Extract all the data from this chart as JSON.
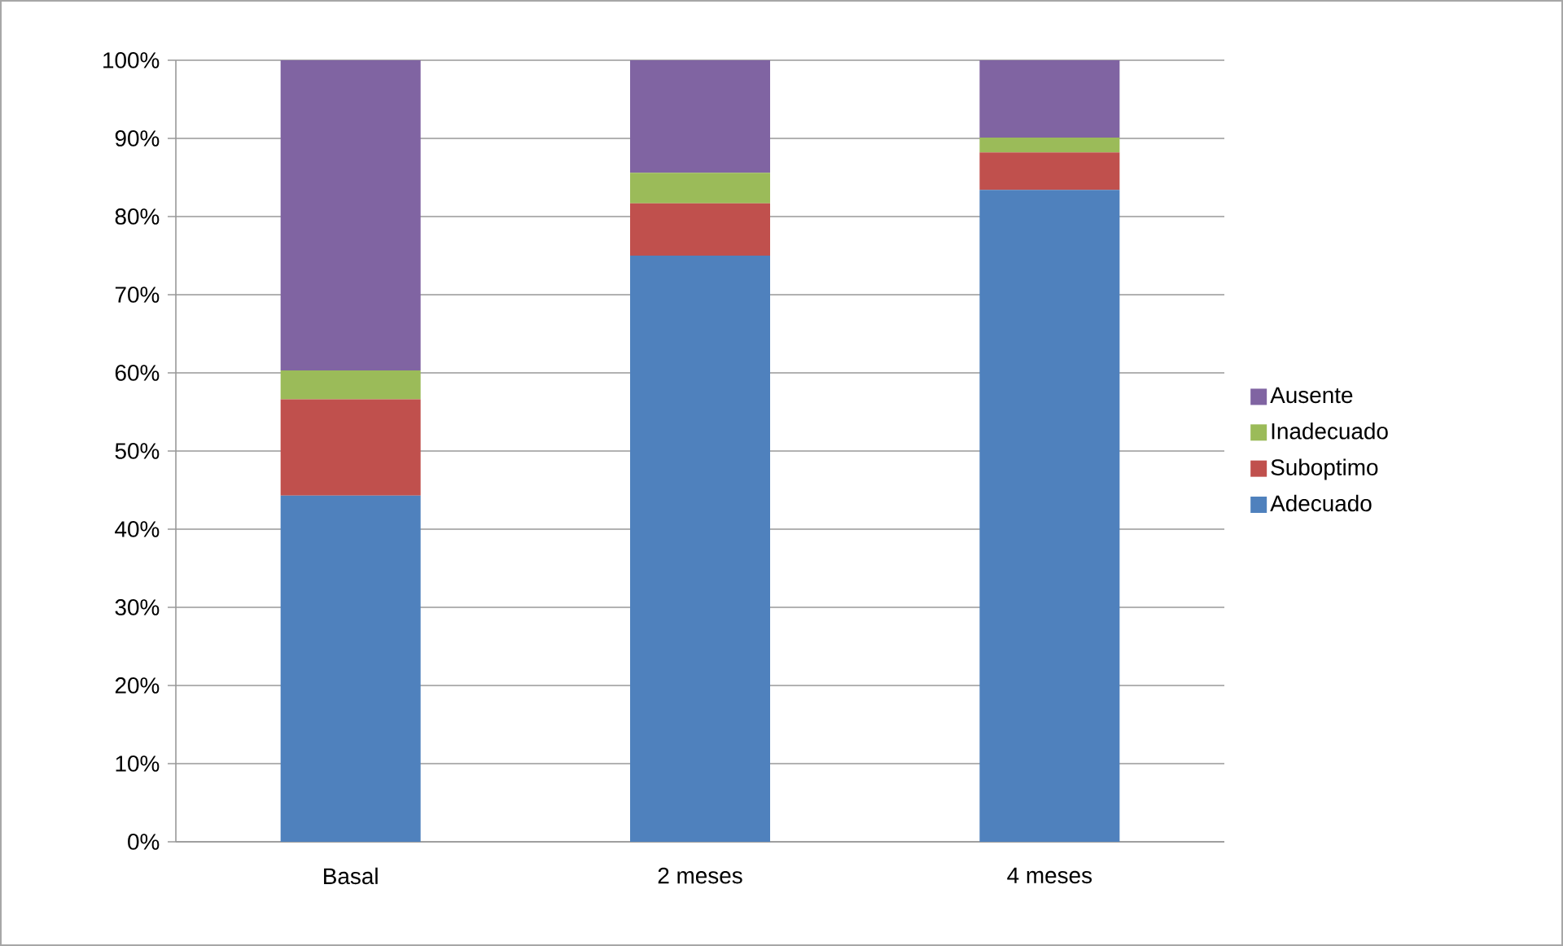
{
  "chart_data": {
    "type": "bar",
    "stacked": true,
    "categories": [
      "Basal",
      "2 meses",
      "4 meses"
    ],
    "series": [
      {
        "name": "Adecuado",
        "color": "#4f81bd",
        "values": [
          44.3,
          75.0,
          83.4
        ]
      },
      {
        "name": "Suboptimo",
        "color": "#c0504d",
        "values": [
          12.3,
          6.7,
          4.8
        ]
      },
      {
        "name": "Inadecuado",
        "color": "#9bbb59",
        "values": [
          3.7,
          3.9,
          1.9
        ]
      },
      {
        "name": "Ausente",
        "color": "#8064a2",
        "values": [
          39.7,
          14.4,
          9.9
        ]
      }
    ],
    "ylim": [
      0,
      100
    ],
    "yticks": [
      {
        "value": 0,
        "label": "0%"
      },
      {
        "value": 10,
        "label": "10%"
      },
      {
        "value": 20,
        "label": "20%"
      },
      {
        "value": 30,
        "label": "30%"
      },
      {
        "value": 40,
        "label": "40%"
      },
      {
        "value": 50,
        "label": "50%"
      },
      {
        "value": 60,
        "label": "60%"
      },
      {
        "value": 70,
        "label": "70%"
      },
      {
        "value": 80,
        "label": "80%"
      },
      {
        "value": 90,
        "label": "90%"
      },
      {
        "value": 100,
        "label": "100%"
      }
    ],
    "grid": "y",
    "legend": "right"
  }
}
